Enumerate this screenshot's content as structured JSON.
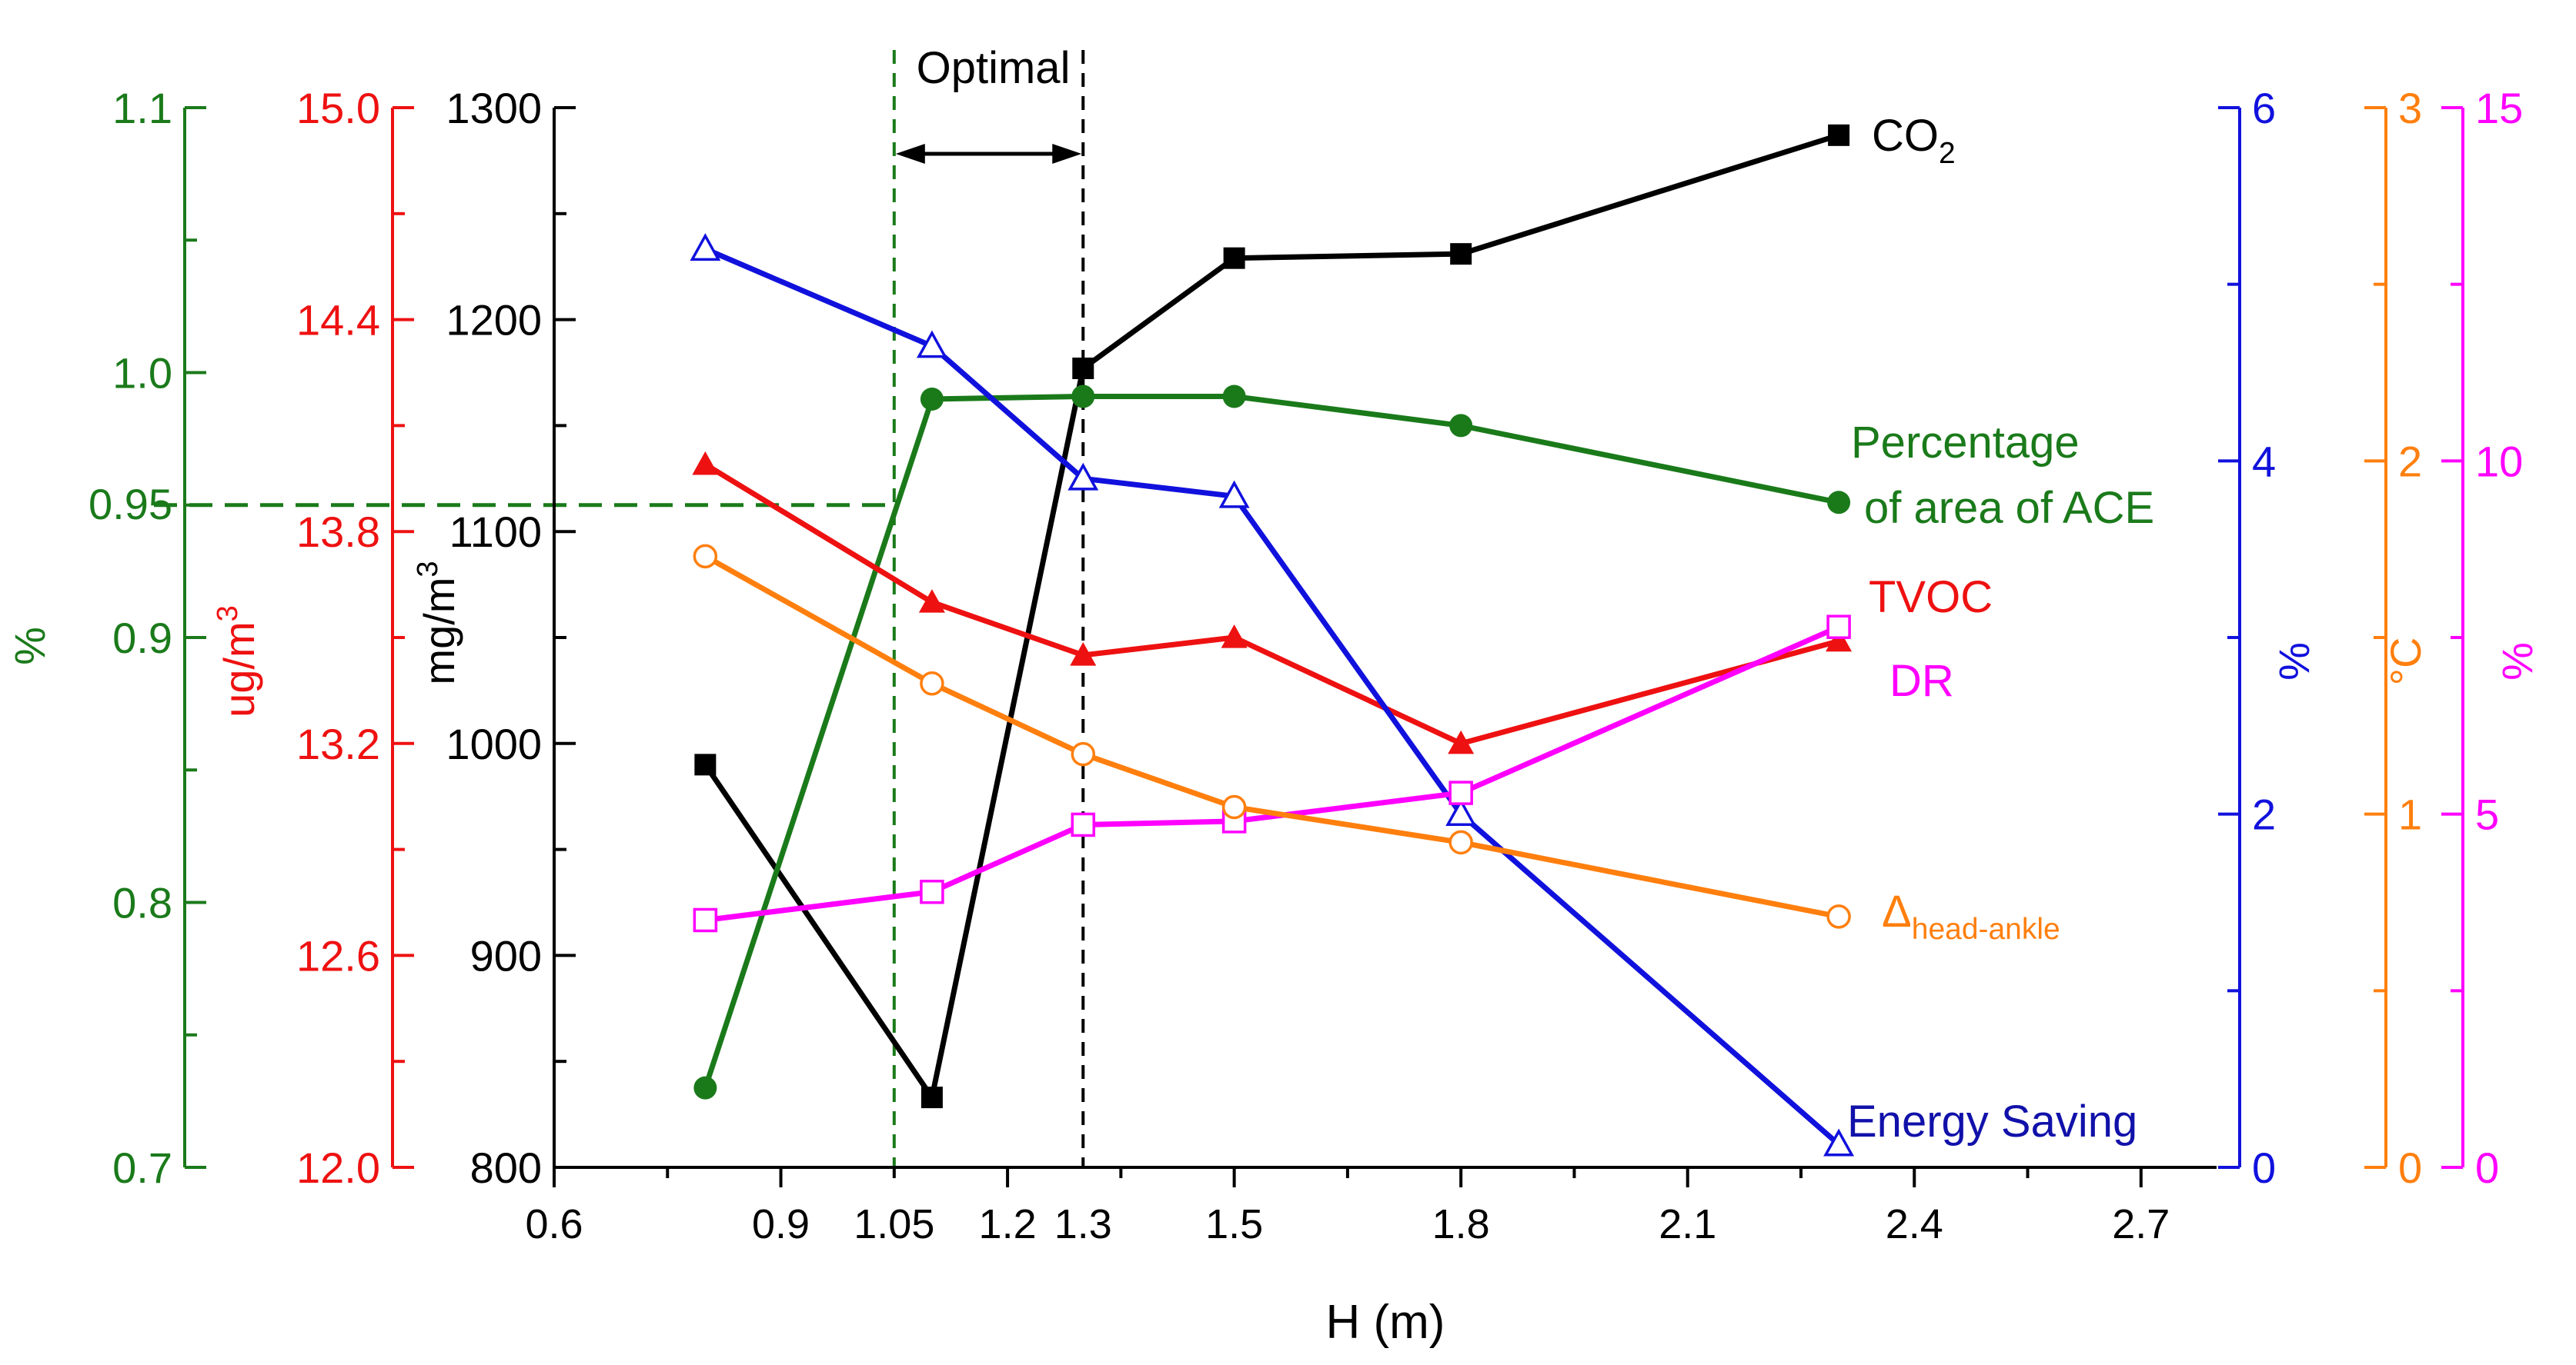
{
  "chart_data": {
    "type": "line",
    "xlabel": "H (m)",
    "xlim": [
      0.6,
      2.8
    ],
    "x_ticks": [
      "0.6",
      "0.9",
      "1.05",
      "1.2",
      "1.3",
      "1.5",
      "1.8",
      "2.1",
      "2.4",
      "2.7"
    ],
    "annotation": {
      "label": "Optimal",
      "range": [
        1.05,
        1.3
      ],
      "reference_value": "0.95"
    },
    "axes": [
      {
        "id": "ace",
        "label": "%",
        "color": "#1a7a1a",
        "ylim": [
          0.7,
          1.1
        ],
        "ticks": [
          "0.7",
          "0.8",
          "0.9",
          "0.95",
          "1.0",
          "1.1"
        ]
      },
      {
        "id": "tvoc",
        "label": "ug/m",
        "label_sup": "3",
        "color": "#ee1111",
        "ylim": [
          12.0,
          15.0
        ],
        "ticks": [
          "12.0",
          "12.6",
          "13.2",
          "13.8",
          "14.4",
          "15.0"
        ]
      },
      {
        "id": "co2",
        "label": "mg/m",
        "label_sup": "3",
        "color": "#000000",
        "ylim": [
          800,
          1300
        ],
        "ticks": [
          "800",
          "900",
          "1000",
          "1100",
          "1200",
          "1300"
        ]
      },
      {
        "id": "energy",
        "label": "%",
        "color": "#1111dd",
        "ylim": [
          0,
          6
        ],
        "ticks": [
          "0",
          "2",
          "4",
          "6"
        ]
      },
      {
        "id": "temp",
        "label": "°C",
        "color": "#ff7f0e",
        "ylim": [
          0,
          3
        ],
        "ticks": [
          "0",
          "1",
          "2",
          "3"
        ]
      },
      {
        "id": "dr",
        "label": "%",
        "color": "#ff00ff",
        "ylim": [
          0,
          15
        ],
        "ticks": [
          "0",
          "5",
          "10",
          "15"
        ]
      }
    ],
    "series": [
      {
        "name": "CO",
        "name_sub": "2",
        "axis": "co2",
        "marker": "square-filled",
        "color": "#000000",
        "x": [
          0.8,
          1.1,
          1.3,
          1.5,
          1.8,
          2.3
        ],
        "values": [
          990,
          833,
          1177,
          1229,
          1231,
          1287
        ]
      },
      {
        "name": "Percentage of area of ACE",
        "label_lines": [
          "Percentage",
          "of area of ACE"
        ],
        "axis": "ace",
        "marker": "circle-filled",
        "color": "#1a7a1a",
        "x": [
          0.8,
          1.1,
          1.3,
          1.5,
          1.8,
          2.3
        ],
        "values": [
          0.73,
          0.99,
          0.991,
          0.991,
          0.98,
          0.951
        ]
      },
      {
        "name": "TVOC",
        "axis": "tvoc",
        "marker": "triangle-filled",
        "color": "#ee1111",
        "x": [
          0.8,
          1.1,
          1.3,
          1.5,
          1.8,
          2.3
        ],
        "values": [
          13.99,
          13.6,
          13.45,
          13.5,
          13.2,
          13.49
        ]
      },
      {
        "name": "Energy Saving",
        "axis": "energy",
        "marker": "triangle-open",
        "color": "#1111dd",
        "x": [
          0.8,
          1.1,
          1.3,
          1.5,
          1.8,
          2.3
        ],
        "values": [
          5.2,
          4.65,
          3.9,
          3.8,
          2.0,
          0.13
        ]
      },
      {
        "name": "DR",
        "axis": "dr",
        "marker": "square-open",
        "color": "#ff00ff",
        "x": [
          0.8,
          1.1,
          1.3,
          1.5,
          1.8,
          2.3
        ],
        "values": [
          3.5,
          3.9,
          4.85,
          4.9,
          5.3,
          7.65
        ]
      },
      {
        "name": "Δ",
        "name_sub": "head-ankle",
        "axis": "temp",
        "marker": "circle-open",
        "color": "#ff7f0e",
        "x": [
          0.8,
          1.1,
          1.3,
          1.5,
          1.8,
          2.3
        ],
        "values": [
          1.73,
          1.37,
          1.17,
          1.02,
          0.92,
          0.71
        ]
      }
    ]
  }
}
